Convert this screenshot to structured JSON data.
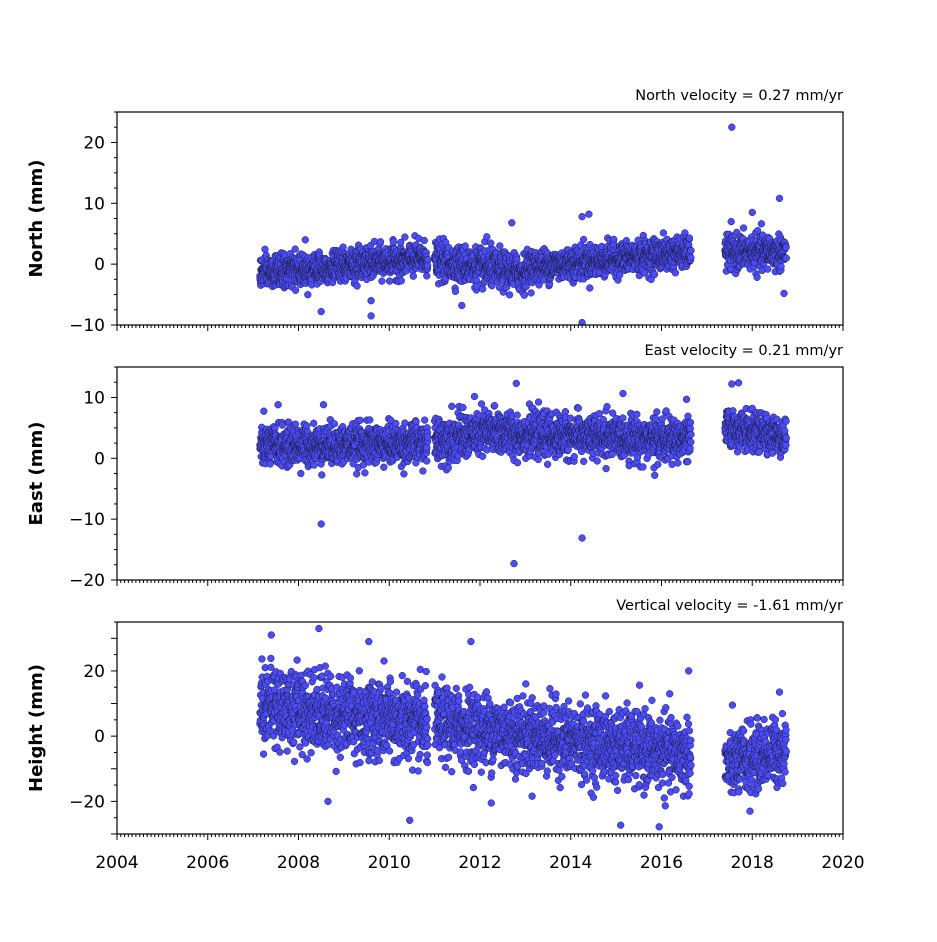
{
  "chart_data": [
    {
      "type": "scatter",
      "title": "North velocity = 0.27 mm/yr",
      "xlabel": "",
      "ylabel": "North (mm)",
      "xlim": [
        2004,
        2020
      ],
      "ylim": [
        -10,
        25
      ],
      "x_ticks": [
        "2004",
        "2006",
        "2008",
        "2010",
        "2012",
        "2014",
        "2016",
        "2018",
        "2020"
      ],
      "y_ticks": [
        "20",
        "10",
        "0",
        "−10"
      ],
      "grid": false,
      "marker_color": "#4c4cff",
      "series": [
        {
          "segments": [
            {
              "start": 2007.15,
              "end": 2010.85,
              "level_start": -1.5,
              "level_end": 1.0,
              "spread": 1.3
            },
            {
              "start": 2011.0,
              "end": 2013.0,
              "level_start": 0.5,
              "level_end": -1.5,
              "spread": 1.5
            },
            {
              "start": 2013.0,
              "end": 2016.65,
              "level_start": -0.5,
              "level_end": 2.0,
              "spread": 1.3
            },
            {
              "start": 2017.4,
              "end": 2018.75,
              "level_start": 2.0,
              "level_end": 2.0,
              "spread": 1.4
            }
          ],
          "outliers": [
            {
              "x": 2017.55,
              "y": 22.5
            },
            {
              "x": 2018.6,
              "y": 10.8
            },
            {
              "x": 2018.0,
              "y": 8.5
            },
            {
              "x": 2014.25,
              "y": 7.8
            },
            {
              "x": 2014.4,
              "y": 8.2
            },
            {
              "x": 2012.7,
              "y": 6.8
            },
            {
              "x": 2008.5,
              "y": -7.8
            },
            {
              "x": 2009.6,
              "y": -8.5
            },
            {
              "x": 2009.6,
              "y": -6.0
            },
            {
              "x": 2014.25,
              "y": -9.6
            },
            {
              "x": 2011.6,
              "y": -6.8
            },
            {
              "x": 2018.7,
              "y": -4.8
            },
            {
              "x": 2008.15,
              "y": 4.0
            },
            {
              "x": 2012.15,
              "y": 4.5
            }
          ]
        }
      ]
    },
    {
      "type": "scatter",
      "title": "East velocity = 0.21 mm/yr",
      "xlabel": "",
      "ylabel": "East (mm)",
      "xlim": [
        2004,
        2020
      ],
      "ylim": [
        -20,
        15
      ],
      "x_ticks": [
        "2004",
        "2006",
        "2008",
        "2010",
        "2012",
        "2014",
        "2016",
        "2018",
        "2020"
      ],
      "y_ticks": [
        "10",
        "0",
        "−10",
        "−20"
      ],
      "grid": false,
      "marker_color": "#4c4cff",
      "series": [
        {
          "segments": [
            {
              "start": 2007.15,
              "end": 2010.85,
              "level_start": 2.0,
              "level_end": 2.5,
              "spread": 1.6
            },
            {
              "start": 2011.0,
              "end": 2012.5,
              "level_start": 3.0,
              "level_end": 4.5,
              "spread": 1.9
            },
            {
              "start": 2012.5,
              "end": 2016.65,
              "level_start": 4.0,
              "level_end": 3.0,
              "spread": 1.7
            },
            {
              "start": 2017.4,
              "end": 2018.75,
              "level_start": 5.0,
              "level_end": 3.5,
              "spread": 1.5
            }
          ],
          "outliers": [
            {
              "x": 2008.5,
              "y": -10.8
            },
            {
              "x": 2012.75,
              "y": -17.3
            },
            {
              "x": 2014.25,
              "y": -13.1
            },
            {
              "x": 2012.8,
              "y": 12.3
            },
            {
              "x": 2017.55,
              "y": 12.2
            },
            {
              "x": 2017.7,
              "y": 12.4
            },
            {
              "x": 2007.55,
              "y": 8.8
            },
            {
              "x": 2008.55,
              "y": 8.8
            },
            {
              "x": 2016.55,
              "y": 9.7
            },
            {
              "x": 2015.85,
              "y": -2.8
            },
            {
              "x": 2008.05,
              "y": -2.5
            },
            {
              "x": 2014.8,
              "y": 8.5
            }
          ]
        }
      ]
    },
    {
      "type": "scatter",
      "title": "Vertical velocity = -1.61 mm/yr",
      "xlabel": "",
      "ylabel": "Height (mm)",
      "xlim": [
        2004,
        2020
      ],
      "ylim": [
        -30,
        35
      ],
      "x_ticks": [
        "2004",
        "2006",
        "2008",
        "2010",
        "2012",
        "2014",
        "2016",
        "2018",
        "2020"
      ],
      "y_ticks": [
        "20",
        "0",
        "−20"
      ],
      "grid": false,
      "marker_color": "#4c4cff",
      "series": [
        {
          "segments": [
            {
              "start": 2007.15,
              "end": 2010.85,
              "level_start": 10.0,
              "level_end": 3.0,
              "spread": 6.0
            },
            {
              "start": 2011.0,
              "end": 2016.65,
              "level_start": 4.0,
              "level_end": -6.0,
              "spread": 5.5
            },
            {
              "start": 2017.4,
              "end": 2018.75,
              "level_start": -9.0,
              "level_end": -4.0,
              "spread": 5.0
            }
          ],
          "outliers": [
            {
              "x": 2008.45,
              "y": 33.0
            },
            {
              "x": 2007.4,
              "y": 31.0
            },
            {
              "x": 2009.55,
              "y": 29.0
            },
            {
              "x": 2011.8,
              "y": 29.0
            },
            {
              "x": 2010.45,
              "y": -25.8
            },
            {
              "x": 2015.1,
              "y": -27.3
            },
            {
              "x": 2015.95,
              "y": -27.8
            },
            {
              "x": 2008.65,
              "y": -20.0
            },
            {
              "x": 2012.25,
              "y": -20.5
            },
            {
              "x": 2016.6,
              "y": 20.0
            },
            {
              "x": 2018.6,
              "y": 13.5
            },
            {
              "x": 2017.95,
              "y": -23.0
            }
          ]
        }
      ]
    }
  ]
}
